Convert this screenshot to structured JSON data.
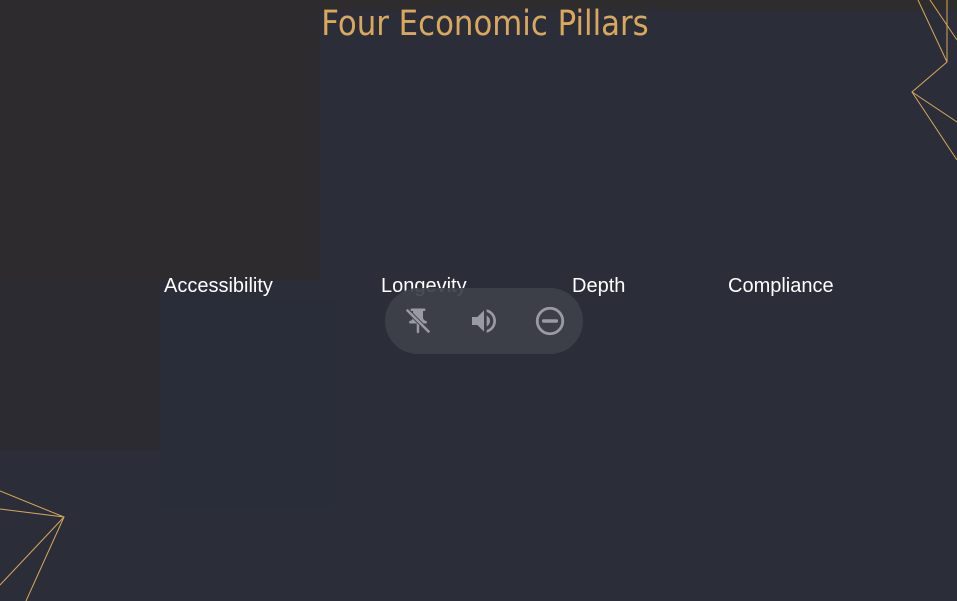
{
  "slide": {
    "title": "Four Economic Pillars",
    "pillars": [
      {
        "label": "Accessibility"
      },
      {
        "label": "Longevity"
      },
      {
        "label": "Depth"
      },
      {
        "label": "Compliance"
      }
    ]
  },
  "media_toolbar": {
    "buttons": [
      {
        "icon": "unpin-icon"
      },
      {
        "icon": "volume-icon"
      },
      {
        "icon": "remove-circle-icon"
      }
    ]
  },
  "colors": {
    "background": "#2b2d38",
    "title": "#d9a85a",
    "pillar_text": "#ffffff",
    "accent_lines": "#d9a85a",
    "toolbar_bg": "#3e404a",
    "toolbar_icon": "#9a9ba2"
  }
}
